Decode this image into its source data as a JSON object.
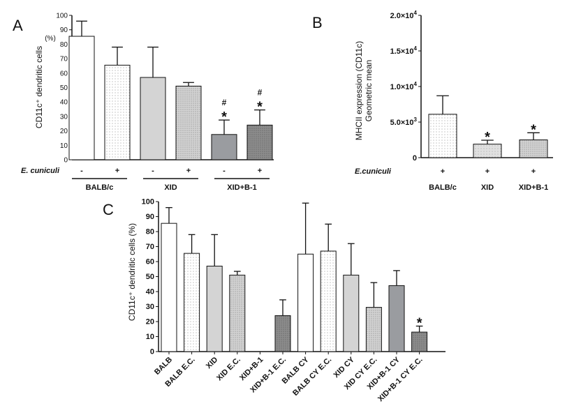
{
  "panel_labels": [
    "A",
    "B",
    "C"
  ],
  "chart_data": [
    {
      "panel": "A",
      "type": "bar",
      "ylabel": "CD11c⁺ dendritic cells",
      "ylabel_unit": "(%)",
      "ylim": [
        0,
        100
      ],
      "yticks": [
        0,
        10,
        20,
        30,
        40,
        50,
        60,
        70,
        80,
        90,
        100
      ],
      "row_label": "E. cuniculi",
      "signs": [
        "-",
        "+",
        "-",
        "+",
        "-",
        "+"
      ],
      "groups": [
        "BALB/c",
        "XID",
        "XID+B-1"
      ],
      "values": [
        85.5,
        65.5,
        57,
        51,
        17.5,
        24
      ],
      "errors": [
        10.5,
        12.5,
        21,
        2.5,
        10,
        10.5
      ],
      "fills": [
        "white",
        "dots",
        "#d4d4d4",
        "dense",
        "#9a9ca0",
        "dense-dark"
      ],
      "annotations": [
        {
          "bar": 4,
          "lines": [
            "#",
            "*"
          ]
        },
        {
          "bar": 5,
          "lines": [
            "#",
            "*"
          ]
        }
      ]
    },
    {
      "panel": "B",
      "type": "bar",
      "ylabel_line1": "MHCII expression (CD11c)",
      "ylabel_line2": "Geometric mean",
      "ylim": [
        0,
        20000
      ],
      "ytick_values": [
        0,
        5000,
        10000,
        15000,
        20000
      ],
      "ytick_labels": [
        {
          "mant": "0",
          "exp": ""
        },
        {
          "mant": "5.0×10",
          "exp": "3"
        },
        {
          "mant": "1.0×10",
          "exp": "4"
        },
        {
          "mant": "1.5×10",
          "exp": "4"
        },
        {
          "mant": "2.0×10",
          "exp": "4"
        }
      ],
      "row_label": "E.cuniculi",
      "signs": [
        "+",
        "+",
        "+"
      ],
      "categories": [
        "BALB/c",
        "XID",
        "XID+B-1"
      ],
      "values": [
        6100,
        1900,
        2500
      ],
      "errors": [
        2600,
        550,
        1000
      ],
      "fills": [
        "dots",
        "dots-light",
        "dense"
      ],
      "annotations": [
        {
          "bar": 1,
          "lines": [
            "*"
          ]
        },
        {
          "bar": 2,
          "lines": [
            "*"
          ]
        }
      ]
    },
    {
      "panel": "C",
      "type": "bar",
      "ylabel": "CD11c⁺ dendritic cells (%)",
      "ylim": [
        0,
        100
      ],
      "yticks": [
        0,
        10,
        20,
        30,
        40,
        50,
        60,
        70,
        80,
        90,
        100
      ],
      "categories": [
        "BALB",
        "BALB E.C.",
        "XID",
        "XID E.C.",
        "XID+B-1",
        "XID+B-1 E.C.",
        "BALB CY",
        "BALB CY E.C.",
        "XID CY",
        "XID CY E.C.",
        "XID+B-1 CY",
        "XID+B-1 CY E.C."
      ],
      "values": [
        85.5,
        65.5,
        57,
        51,
        0,
        24,
        65,
        67,
        51,
        29.5,
        44,
        13
      ],
      "errors": [
        10.5,
        12.5,
        21,
        2.5,
        0,
        10.5,
        34,
        18,
        21,
        16.5,
        10,
        4
      ],
      "fills": [
        "white",
        "dots",
        "#d4d4d4",
        "dense",
        "none",
        "dense-dark",
        "white",
        "dots",
        "#d4d4d4",
        "dense",
        "#9a9ca0",
        "dense-dark"
      ],
      "annotations": [
        {
          "bar": 11,
          "lines": [
            "*"
          ]
        }
      ]
    }
  ]
}
